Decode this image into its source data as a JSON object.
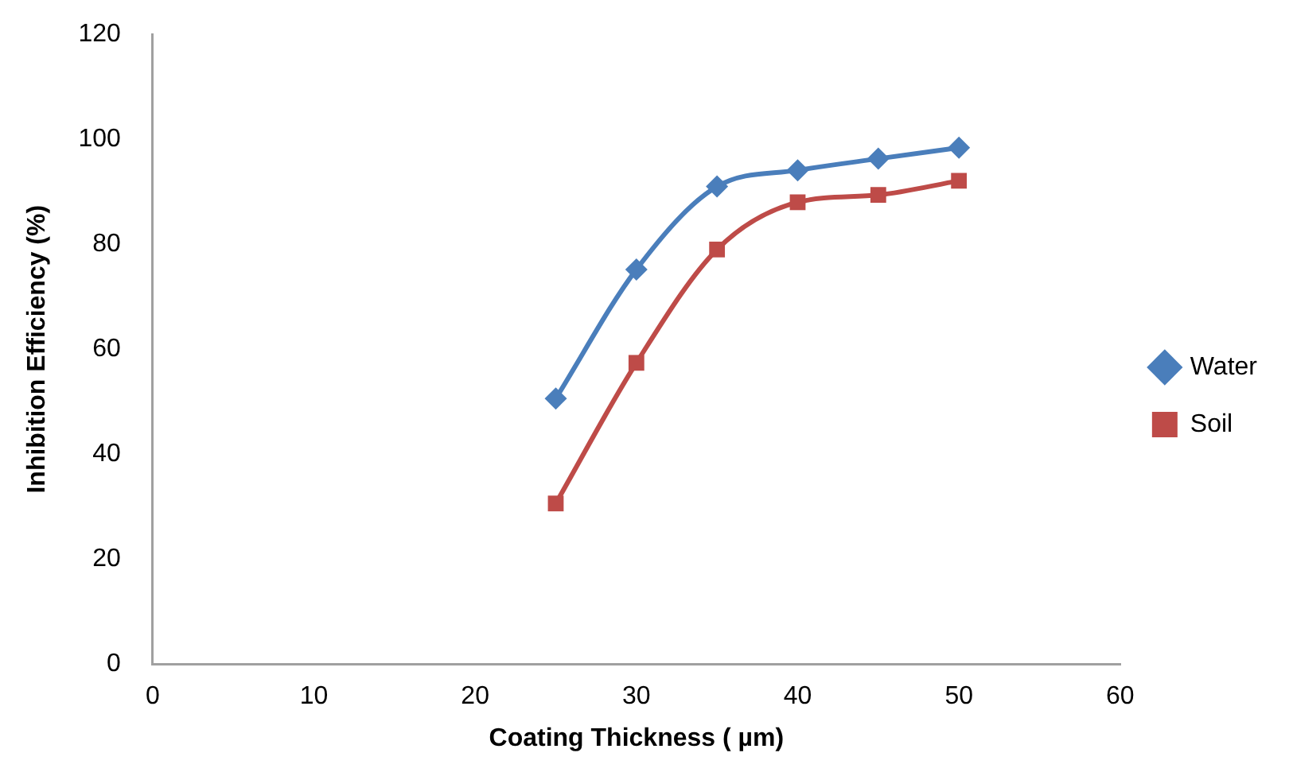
{
  "chart_data": {
    "type": "line",
    "xlabel": "Coating Thickness ( µm)",
    "ylabel": "Inhibition Efficiency (%)",
    "xlim": [
      0,
      60
    ],
    "xticks": [
      0,
      10,
      20,
      30,
      40,
      50,
      60
    ],
    "ylim": [
      0,
      120
    ],
    "yticks": [
      0,
      20,
      40,
      60,
      80,
      100,
      120
    ],
    "grid": false,
    "legend": "right",
    "line_style": "solid",
    "series": [
      {
        "name": "Water",
        "color": "#4a7ebb",
        "marker": "diamond",
        "x": [
          25,
          30,
          35,
          40,
          45,
          50
        ],
        "values": [
          50.6,
          75.2,
          91,
          94.1,
          96.3,
          98.4
        ]
      },
      {
        "name": "Soil",
        "color": "#be4b48",
        "marker": "square",
        "x": [
          25,
          30,
          35,
          40,
          45,
          50
        ],
        "values": [
          30.6,
          57.4,
          79,
          88,
          89.4,
          92.1
        ]
      }
    ]
  }
}
